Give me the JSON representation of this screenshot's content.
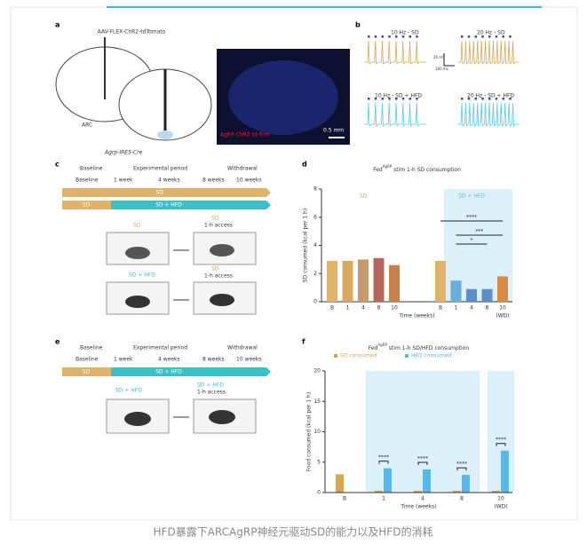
{
  "figure": {
    "a": {
      "label": "a",
      "virus": "AAV-FLEX-ChR2-tdTomato",
      "arc": "ARC",
      "mouse": "Agrp-IRES-Cre",
      "image_label": "AgRP ChR2 td-Tom",
      "scale": "0.5 mm"
    },
    "b": {
      "label": "b",
      "traces": [
        "10 Hz - SD",
        "20 Hz - SD",
        "10 Hz - SD + HFD",
        "20 Hz - SD + HFD"
      ],
      "mv": "20 mV",
      "ms": "100 ms"
    },
    "c": {
      "label": "c",
      "phases": [
        "Baseline",
        "Experimental period",
        "Withdrawal"
      ],
      "times": [
        "Baseline",
        "1 week",
        "4 weeks",
        "8 weeks",
        "10 weeks"
      ],
      "row1": "SD",
      "row2": "SD + HFD",
      "row2_start": "SD",
      "cage1_top": "SD",
      "cage1_after": "SD",
      "access": "1-h access",
      "cage2_top": "SD + HFD",
      "cage2_after": "SD",
      "access2": "1-h access"
    },
    "e": {
      "label": "e",
      "phases": [
        "Baseline",
        "Experimental period",
        "Withdrawal"
      ],
      "times": [
        "Baseline",
        "1 week",
        "4 weeks",
        "8 weeks",
        "10 weeks"
      ],
      "row_start": "SD",
      "row": "SD + HFD",
      "cage_top": "SD + HFD",
      "cage_after": "SD + HFD",
      "access": "1-h access"
    },
    "caption": "HFD暴露下ARCAgRP神经元驱动SD的能力以及HFD的消耗"
  },
  "chart_data": [
    {
      "type": "bar",
      "panel": "d",
      "title_pre": "Fed",
      "title_sup": "AgRP",
      "title_post": " stim 1-h SD consumption",
      "ylabel": "SD consumed (kcal per 1 h)",
      "xlabel": "Time (weeks)",
      "wd": "(WD)",
      "group1": "SD",
      "group2": "SD + HFD",
      "categories": [
        "B",
        "1",
        "4",
        "8",
        "10",
        "B",
        "1",
        "4",
        "8",
        "10"
      ],
      "values": [
        2.9,
        2.9,
        3.0,
        3.1,
        2.6,
        2.9,
        1.5,
        0.9,
        0.9,
        1.8
      ],
      "colors": [
        "#e0b36a",
        "#d9a85e",
        "#c99a6a",
        "#b5675e",
        "#c97f4a",
        "#e0b36a",
        "#6aaedb",
        "#5b8fc8",
        "#5b8fc8",
        "#d98a45"
      ],
      "ylim": [
        0,
        8
      ],
      "yticks": [
        0,
        2,
        4,
        6,
        8
      ],
      "annotations": [
        "****",
        "***",
        "*"
      ]
    },
    {
      "type": "groupbar",
      "panel": "f",
      "title_pre": "Fed",
      "title_sup": "AgRP",
      "title_post": " stim 1-h SD/HFD consumption",
      "ylabel": "Food consumed (kcal per 1 h)",
      "xlabel": "Time (weeks)",
      "wd": "(WD)",
      "categories": [
        "B",
        "1",
        "4",
        "8",
        "10"
      ],
      "series": [
        {
          "name": "SD consumed",
          "color": "#d9a45a",
          "values": [
            3.0,
            0.3,
            0.3,
            0.3,
            0.3
          ]
        },
        {
          "name": "HFD consumed",
          "color": "#5bb8e6",
          "values": [
            null,
            4.0,
            3.8,
            2.9,
            6.9
          ]
        }
      ],
      "ylim": [
        0,
        20
      ],
      "yticks": [
        0,
        5,
        10,
        15,
        20
      ],
      "annotations": [
        "****",
        "****",
        "****",
        "****"
      ]
    }
  ]
}
